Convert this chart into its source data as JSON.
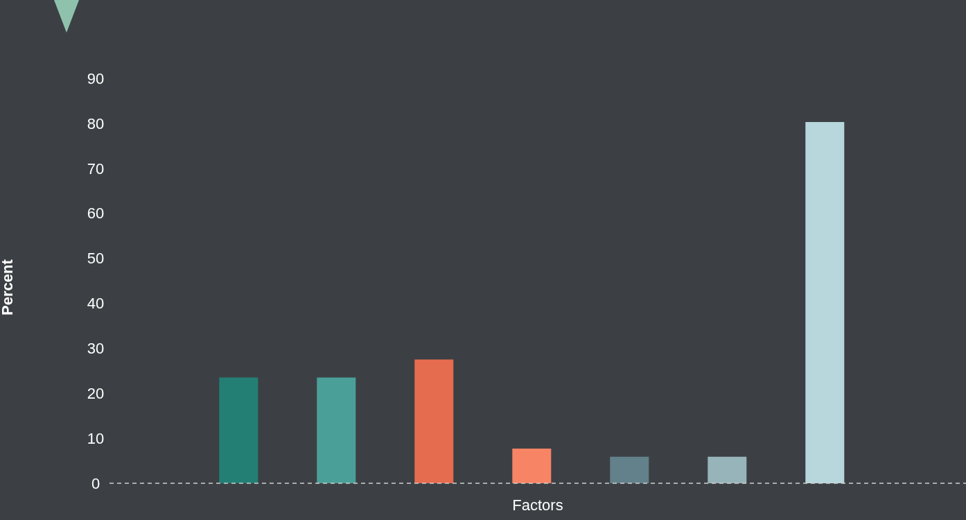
{
  "chart_data": {
    "type": "bar",
    "xlabel": "Factors",
    "ylabel": "Percent",
    "categories": [
      null,
      null,
      null,
      null,
      null,
      null,
      null
    ],
    "values": [
      23.5,
      23.5,
      27.5,
      7.7,
      5.9,
      5.9,
      80.3
    ],
    "colors": [
      "#237f74",
      "#4aa099",
      "#e56c4e",
      "#f88466",
      "#62818a",
      "#97b4ba",
      "#b7d7dc"
    ],
    "ylim": [
      0,
      90
    ],
    "yticks": [
      0,
      10,
      20,
      30,
      40,
      50,
      60,
      70,
      80,
      90
    ],
    "grid": false,
    "legend": false
  }
}
